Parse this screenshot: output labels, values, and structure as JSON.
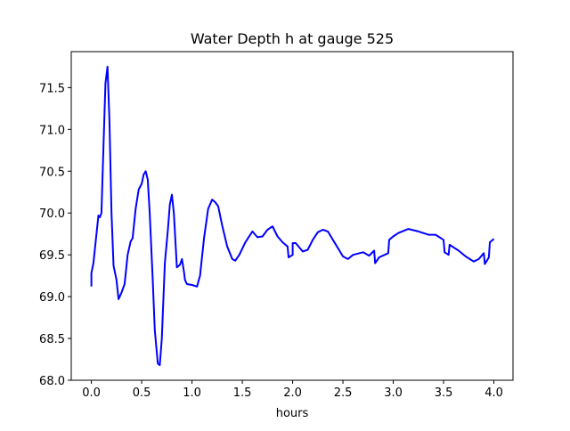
{
  "chart_data": {
    "type": "line",
    "title": "Water Depth h at gauge 525",
    "xlabel": "hours",
    "ylabel": "",
    "xlim": [
      -0.2,
      4.19
    ],
    "ylim": [
      68.0,
      71.93
    ],
    "xticks": [
      0.0,
      0.5,
      1.0,
      1.5,
      2.0,
      2.5,
      3.0,
      3.5,
      4.0
    ],
    "xtick_labels": [
      "0.0",
      "0.5",
      "1.0",
      "1.5",
      "2.0",
      "2.5",
      "3.0",
      "3.5",
      "4.0"
    ],
    "yticks": [
      68.0,
      68.5,
      69.0,
      69.5,
      70.0,
      70.5,
      71.0,
      71.5
    ],
    "ytick_labels": [
      "68.0",
      "68.5",
      "69.0",
      "69.5",
      "70.0",
      "70.5",
      "71.0",
      "71.5"
    ],
    "grid": false,
    "series": [
      {
        "name": "h",
        "color": "#0000ff",
        "x": [
          0,
          0,
          0.02,
          0.07,
          0.085,
          0.1,
          0.12,
          0.14,
          0.16,
          0.18,
          0.2,
          0.22,
          0.25,
          0.27,
          0.3,
          0.33,
          0.36,
          0.39,
          0.41,
          0.44,
          0.47,
          0.5,
          0.52,
          0.54,
          0.56,
          0.58,
          0.61,
          0.63,
          0.66,
          0.68,
          0.7,
          0.73,
          0.76,
          0.78,
          0.8,
          0.82,
          0.85,
          0.88,
          0.9,
          0.92,
          0.93,
          0.95,
          1.0,
          1.05,
          1.08,
          1.12,
          1.16,
          1.2,
          1.23,
          1.26,
          1.3,
          1.35,
          1.4,
          1.43,
          1.47,
          1.53,
          1.6,
          1.65,
          1.7,
          1.75,
          1.8,
          1.85,
          1.9,
          1.95,
          1.96,
          2.0,
          2.0,
          2.03,
          2.1,
          2.15,
          2.2,
          2.25,
          2.3,
          2.35,
          2.4,
          2.5,
          2.55,
          2.6,
          2.7,
          2.76,
          2.81,
          2.82,
          2.86,
          2.95,
          2.96,
          3.0,
          3.05,
          3.15,
          3.25,
          3.35,
          3.42,
          3.5,
          3.51,
          3.55,
          3.56,
          3.65,
          3.72,
          3.8,
          3.85,
          3.9,
          3.91,
          3.95,
          3.96,
          4.0
        ],
        "y": [
          69.12,
          69.28,
          69.4,
          69.97,
          69.95,
          70.0,
          70.8,
          71.55,
          71.75,
          71.1,
          70.0,
          69.37,
          69.2,
          68.97,
          69.05,
          69.15,
          69.5,
          69.66,
          69.7,
          70.05,
          70.28,
          70.35,
          70.46,
          70.5,
          70.4,
          70.0,
          69.2,
          68.6,
          68.2,
          68.18,
          68.5,
          69.4,
          69.8,
          70.1,
          70.22,
          70.0,
          69.35,
          69.38,
          69.45,
          69.3,
          69.2,
          69.15,
          69.14,
          69.12,
          69.25,
          69.7,
          70.05,
          70.16,
          70.13,
          70.08,
          69.85,
          69.6,
          69.45,
          69.43,
          69.5,
          69.65,
          69.78,
          69.71,
          69.72,
          69.8,
          69.84,
          69.72,
          69.65,
          69.6,
          69.47,
          69.5,
          69.64,
          69.64,
          69.54,
          69.56,
          69.68,
          69.77,
          69.8,
          69.78,
          69.68,
          69.48,
          69.45,
          69.5,
          69.53,
          69.49,
          69.55,
          69.4,
          69.47,
          69.52,
          69.68,
          69.72,
          69.76,
          69.81,
          69.78,
          69.74,
          69.74,
          69.68,
          69.53,
          69.5,
          69.62,
          69.55,
          69.48,
          69.42,
          69.45,
          69.52,
          69.39,
          69.47,
          69.65,
          69.69
        ]
      }
    ]
  }
}
